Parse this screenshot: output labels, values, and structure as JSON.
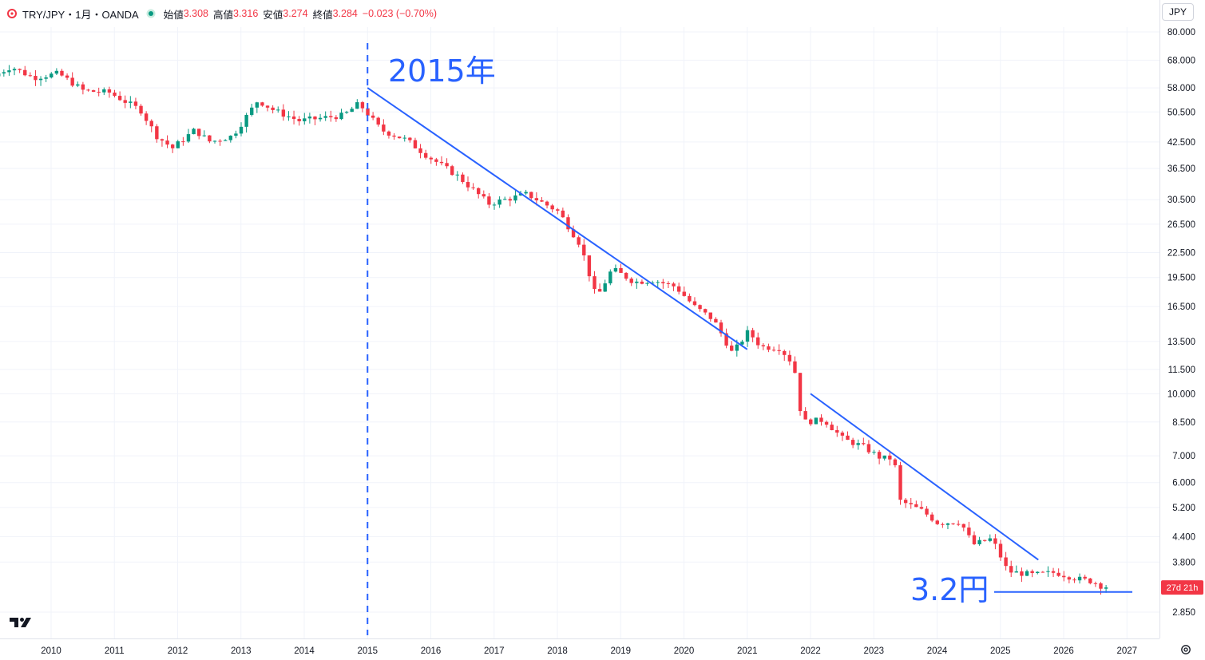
{
  "header": {
    "symbol": "TRY/JPY・1月・OANDA",
    "open_label": "始値",
    "open_value": "3.308",
    "high_label": "高値",
    "high_value": "3.316",
    "low_label": "安値",
    "low_value": "3.274",
    "close_label": "終値",
    "close_value": "3.284",
    "change": "−0.023 (−0.70%)"
  },
  "currency_button": "JPY",
  "price_tag": "27d 21h",
  "colors": {
    "up": "#089981",
    "down": "#f23645",
    "annotation": "#2962ff",
    "grid": "#f0f3fa",
    "axis_text": "#131722"
  },
  "icons": [
    "oanda-logo-icon",
    "market-status-dot-icon",
    "tradingview-logo-icon",
    "settings-icon"
  ],
  "chart_data": {
    "type": "candlestick",
    "scale": "log",
    "interval": "1M",
    "ylim": [
      2.6,
      85
    ],
    "x_ticks": [
      "2010",
      "2011",
      "2012",
      "2013",
      "2014",
      "2015",
      "2016",
      "2017",
      "2018",
      "2019",
      "2020",
      "2021",
      "2022",
      "2023",
      "2024",
      "2025",
      "2026",
      "2027"
    ],
    "y_ticks": [
      "80.000",
      "68.000",
      "58.000",
      "50.500",
      "42.500",
      "36.500",
      "30.500",
      "26.500",
      "22.500",
      "19.500",
      "16.500",
      "13.500",
      "11.500",
      "10.000",
      "8.500",
      "7.000",
      "6.000",
      "5.200",
      "4.400",
      "3.800",
      "2.850"
    ],
    "anchors": [
      {
        "t": 2009.17,
        "v": 62.0
      },
      {
        "t": 2009.45,
        "v": 65.5
      },
      {
        "t": 2009.8,
        "v": 61.5
      },
      {
        "t": 2010.2,
        "v": 63.0
      },
      {
        "t": 2010.6,
        "v": 57.0
      },
      {
        "t": 2011.0,
        "v": 56.5
      },
      {
        "t": 2011.5,
        "v": 51.0
      },
      {
        "t": 2011.75,
        "v": 44.0
      },
      {
        "t": 2012.0,
        "v": 41.0
      },
      {
        "t": 2012.35,
        "v": 45.5
      },
      {
        "t": 2012.6,
        "v": 42.5
      },
      {
        "t": 2012.95,
        "v": 44.0
      },
      {
        "t": 2013.35,
        "v": 54.0
      },
      {
        "t": 2013.6,
        "v": 51.0
      },
      {
        "t": 2014.0,
        "v": 48.0
      },
      {
        "t": 2014.7,
        "v": 49.5
      },
      {
        "t": 2014.95,
        "v": 53.0
      },
      {
        "t": 2015.3,
        "v": 45.5
      },
      {
        "t": 2015.7,
        "v": 43.0
      },
      {
        "t": 2016.0,
        "v": 39.5
      },
      {
        "t": 2016.5,
        "v": 35.0
      },
      {
        "t": 2017.0,
        "v": 29.8
      },
      {
        "t": 2017.6,
        "v": 31.5
      },
      {
        "t": 2018.1,
        "v": 28.5
      },
      {
        "t": 2018.45,
        "v": 23.5
      },
      {
        "t": 2018.7,
        "v": 17.3
      },
      {
        "t": 2018.95,
        "v": 20.5
      },
      {
        "t": 2019.3,
        "v": 19.0
      },
      {
        "t": 2019.6,
        "v": 19.2
      },
      {
        "t": 2019.95,
        "v": 18.5
      },
      {
        "t": 2020.25,
        "v": 16.5
      },
      {
        "t": 2020.55,
        "v": 15.3
      },
      {
        "t": 2020.85,
        "v": 12.6
      },
      {
        "t": 2021.1,
        "v": 14.3
      },
      {
        "t": 2021.3,
        "v": 13.1
      },
      {
        "t": 2021.6,
        "v": 13.0
      },
      {
        "t": 2021.82,
        "v": 11.8
      },
      {
        "t": 2021.95,
        "v": 8.5
      },
      {
        "t": 2022.3,
        "v": 8.6
      },
      {
        "t": 2022.6,
        "v": 7.7
      },
      {
        "t": 2022.9,
        "v": 7.4
      },
      {
        "t": 2023.2,
        "v": 6.9
      },
      {
        "t": 2023.4,
        "v": 6.9
      },
      {
        "t": 2023.5,
        "v": 5.4
      },
      {
        "t": 2023.85,
        "v": 5.1
      },
      {
        "t": 2024.1,
        "v": 4.75
      },
      {
        "t": 2024.45,
        "v": 4.8
      },
      {
        "t": 2024.65,
        "v": 4.2
      },
      {
        "t": 2024.95,
        "v": 4.35
      },
      {
        "t": 2025.2,
        "v": 3.6
      },
      {
        "t": 2025.6,
        "v": 3.53
      },
      {
        "t": 2025.95,
        "v": 3.58
      },
      {
        "t": 2026.3,
        "v": 3.45
      },
      {
        "t": 2026.55,
        "v": 3.4
      },
      {
        "t": 2026.72,
        "v": 3.284
      }
    ],
    "annotations": {
      "vertical_line_year": "2015",
      "label_2015": "2015年",
      "label_price": "3.2円",
      "trendlines": [
        {
          "from": [
            "2015.0",
            58.0
          ],
          "to": [
            "2021.0",
            12.9
          ]
        },
        {
          "from": [
            "2022.0",
            10.0
          ],
          "to": [
            "2025.6",
            3.85
          ]
        }
      ],
      "horizontal_level": 3.2
    }
  }
}
